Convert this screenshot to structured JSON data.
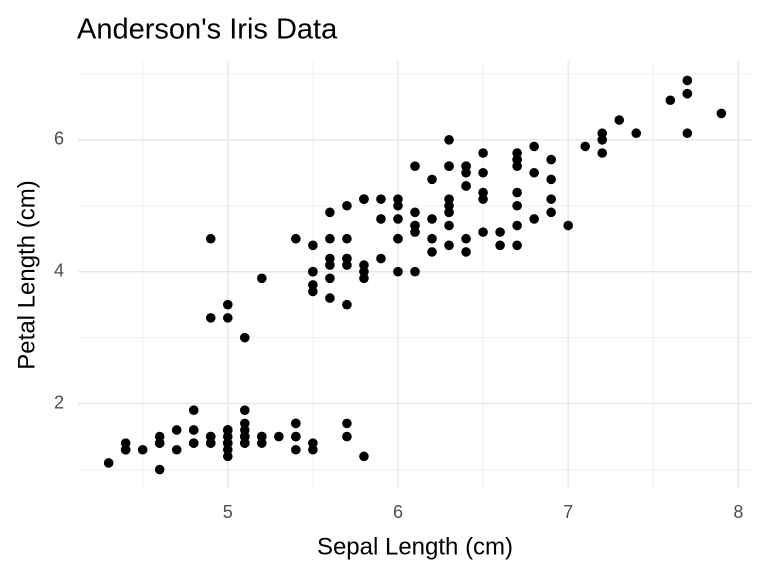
{
  "chart_data": {
    "type": "scatter",
    "title": "Anderson's Iris Data",
    "x_label": "Sepal Length (cm)",
    "y_label": "Petal Length (cm)",
    "color": "#000000",
    "grid": true,
    "xlim": [
      4.12,
      8.08
    ],
    "ylim": [
      0.705,
      7.195
    ],
    "xticks": [
      5,
      6,
      7,
      8
    ],
    "yticks": [
      2,
      4,
      6
    ],
    "x": [
      5.1,
      4.9,
      4.7,
      4.6,
      5.0,
      5.4,
      4.6,
      5.0,
      4.4,
      4.9,
      5.4,
      4.8,
      4.8,
      4.3,
      5.8,
      5.7,
      5.4,
      5.1,
      5.7,
      5.1,
      5.4,
      5.1,
      4.6,
      5.1,
      4.8,
      5.0,
      5.0,
      5.2,
      5.2,
      4.7,
      4.8,
      5.4,
      5.2,
      5.5,
      4.9,
      5.0,
      5.5,
      4.9,
      4.4,
      5.1,
      5.0,
      4.5,
      4.4,
      5.0,
      5.1,
      4.8,
      5.1,
      4.6,
      5.3,
      5.0,
      7.0,
      6.4,
      6.9,
      5.5,
      6.5,
      5.7,
      6.3,
      4.9,
      6.6,
      5.2,
      5.0,
      5.9,
      6.0,
      6.1,
      5.6,
      6.7,
      5.6,
      5.8,
      6.2,
      5.6,
      5.9,
      6.1,
      6.3,
      6.1,
      6.4,
      6.6,
      6.8,
      6.7,
      6.0,
      5.7,
      5.5,
      5.5,
      5.8,
      6.0,
      5.4,
      6.0,
      6.7,
      6.3,
      5.6,
      5.5,
      5.5,
      6.1,
      5.8,
      5.0,
      5.6,
      5.7,
      5.7,
      6.2,
      5.1,
      5.7,
      6.3,
      5.8,
      7.1,
      6.3,
      6.5,
      7.6,
      4.9,
      7.3,
      6.7,
      7.2,
      6.5,
      6.4,
      6.8,
      5.7,
      5.8,
      6.4,
      6.5,
      7.7,
      7.7,
      6.0,
      6.9,
      5.6,
      7.7,
      6.3,
      6.7,
      7.2,
      6.2,
      6.1,
      6.4,
      7.2,
      7.4,
      7.9,
      6.4,
      6.3,
      6.1,
      7.7,
      6.3,
      6.4,
      6.0,
      6.9,
      6.7,
      6.9,
      5.8,
      6.8,
      6.7,
      6.7,
      6.3,
      6.5,
      6.2,
      5.9
    ],
    "values": [
      1.4,
      1.4,
      1.3,
      1.5,
      1.4,
      1.7,
      1.4,
      1.5,
      1.4,
      1.5,
      1.5,
      1.6,
      1.4,
      1.1,
      1.2,
      1.5,
      1.3,
      1.4,
      1.7,
      1.5,
      1.7,
      1.5,
      1.0,
      1.7,
      1.9,
      1.6,
      1.6,
      1.5,
      1.4,
      1.6,
      1.6,
      1.5,
      1.5,
      1.4,
      1.5,
      1.2,
      1.3,
      1.4,
      1.3,
      1.5,
      1.3,
      1.3,
      1.3,
      1.6,
      1.9,
      1.4,
      1.6,
      1.4,
      1.5,
      1.4,
      4.7,
      4.5,
      4.9,
      4.0,
      4.6,
      4.5,
      4.7,
      3.3,
      4.6,
      3.9,
      3.5,
      4.2,
      4.0,
      4.7,
      3.6,
      4.4,
      4.5,
      4.1,
      4.5,
      3.9,
      4.8,
      4.0,
      4.9,
      4.7,
      4.3,
      4.4,
      4.8,
      5.0,
      4.5,
      3.5,
      3.8,
      3.7,
      3.9,
      5.1,
      4.5,
      4.5,
      4.7,
      4.4,
      4.1,
      4.0,
      4.4,
      4.6,
      4.0,
      3.3,
      4.2,
      4.2,
      4.2,
      4.3,
      3.0,
      4.1,
      6.0,
      5.1,
      5.9,
      5.6,
      5.8,
      6.6,
      4.5,
      6.3,
      5.8,
      6.1,
      5.1,
      5.3,
      5.5,
      5.0,
      5.1,
      5.3,
      5.5,
      6.7,
      6.9,
      5.0,
      5.7,
      4.9,
      6.7,
      4.9,
      5.7,
      6.0,
      4.8,
      4.9,
      5.6,
      5.8,
      6.1,
      6.4,
      5.6,
      5.1,
      5.6,
      6.1,
      5.6,
      5.5,
      4.8,
      5.4,
      5.6,
      5.1,
      5.1,
      5.9,
      5.7,
      5.2,
      5.0,
      5.2,
      5.4,
      5.1
    ]
  }
}
